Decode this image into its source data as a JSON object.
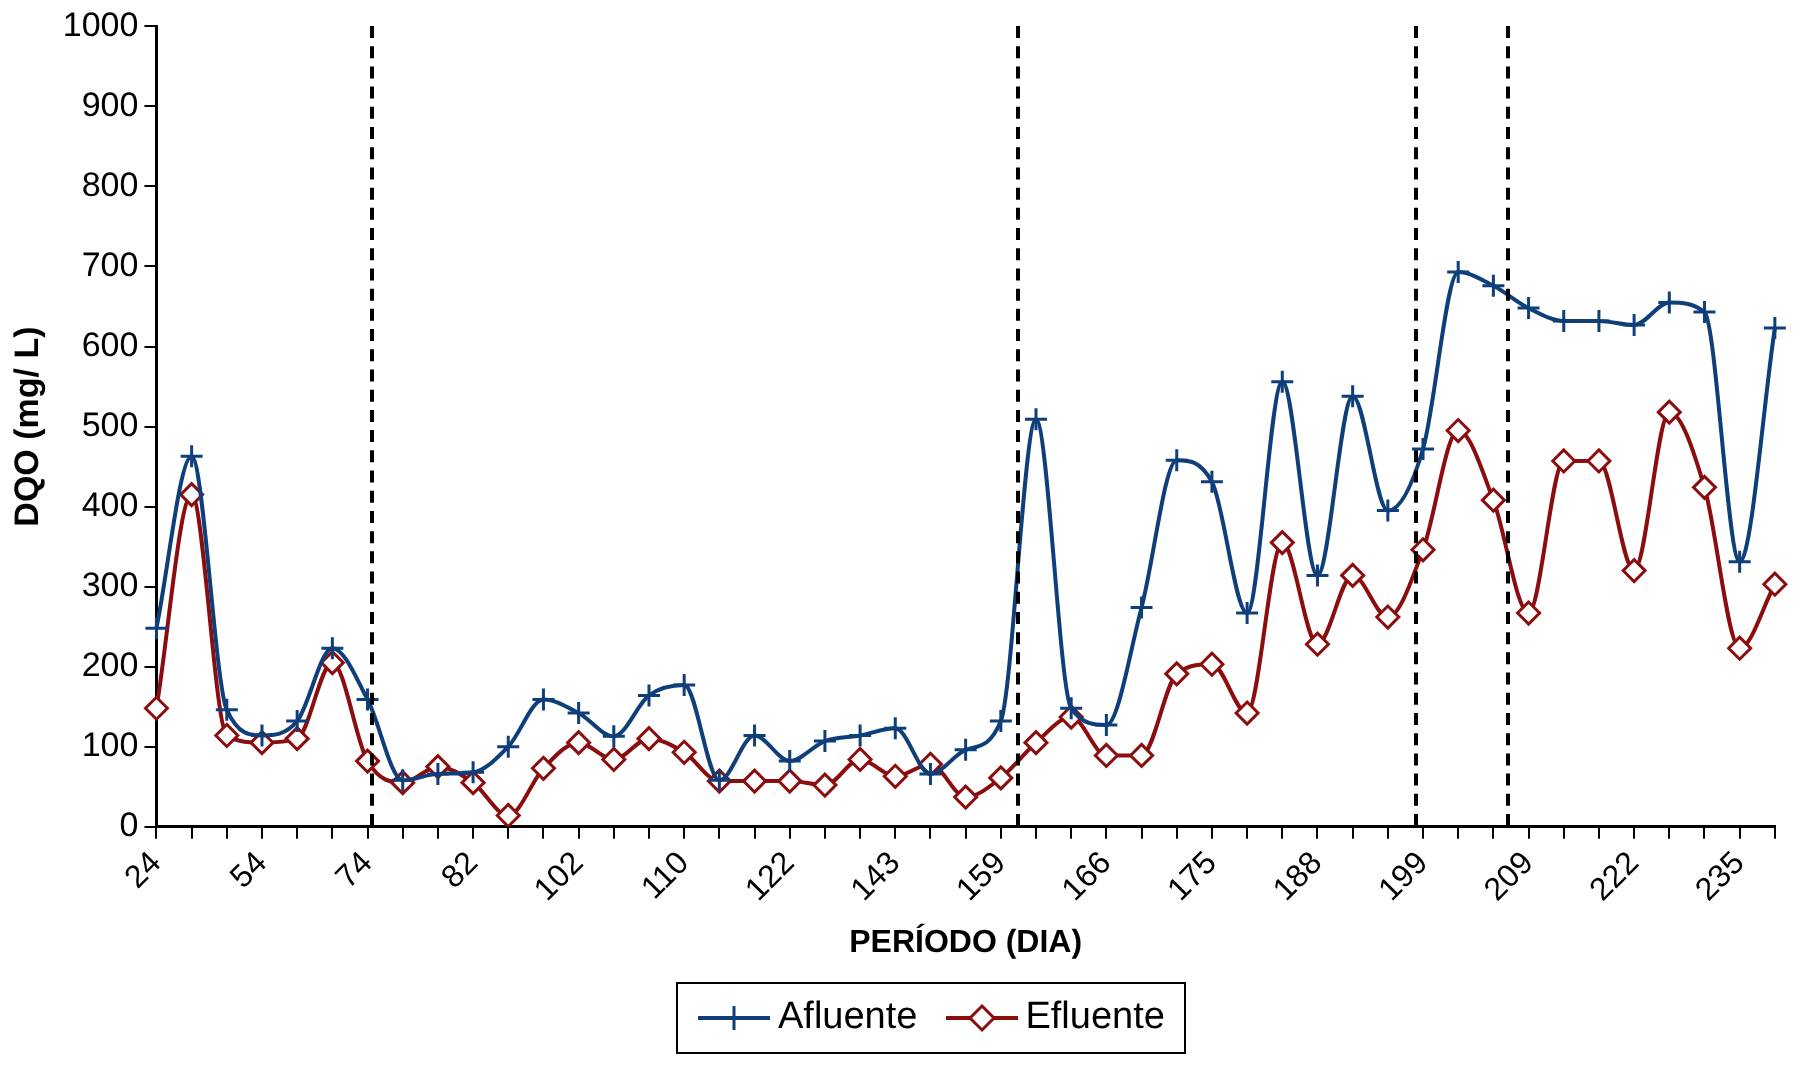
{
  "chart_data": {
    "type": "line",
    "xlabel": "PERÍODO (DIA)",
    "ylabel": "DQO (mg/ L)",
    "categories": [
      "24",
      null,
      null,
      "54",
      null,
      null,
      "74",
      null,
      null,
      "82",
      null,
      null,
      "102",
      null,
      null,
      "110",
      null,
      null,
      "122",
      null,
      null,
      "143",
      null,
      null,
      "159",
      null,
      null,
      "166",
      null,
      null,
      "175",
      null,
      null,
      "188",
      null,
      null,
      "199",
      null,
      null,
      "209",
      null,
      null,
      "222",
      null,
      null,
      "235",
      null
    ],
    "series": [
      {
        "name": "Afluente",
        "color": "#0f3f7a",
        "marker": "cross",
        "values": [
          248,
          463,
          146,
          114,
          132,
          223,
          159,
          58,
          66,
          68,
          100,
          159,
          142,
          113,
          164,
          177,
          58,
          114,
          82,
          107,
          114,
          123,
          66,
          96,
          132,
          509,
          148,
          127,
          274,
          458,
          431,
          267,
          556,
          314,
          538,
          395,
          472,
          693,
          676,
          648,
          632,
          632,
          627,
          655,
          643,
          331,
          623
        ]
      },
      {
        "name": "Efluente",
        "color": "#8b0d0d",
        "marker": "diamond",
        "values": [
          148,
          415,
          114,
          105,
          110,
          205,
          82,
          55,
          75,
          55,
          14,
          73,
          105,
          84,
          110,
          93,
          57,
          57,
          57,
          52,
          84,
          63,
          78,
          37,
          61,
          105,
          137,
          89,
          89,
          191,
          203,
          142,
          355,
          228,
          314,
          262,
          346,
          495,
          408,
          267,
          457,
          457,
          320,
          518,
          424,
          223,
          303
        ]
      }
    ],
    "ylim": [
      0,
      1000
    ],
    "yticks": [
      0,
      100,
      200,
      300,
      400,
      500,
      600,
      700,
      800,
      900,
      1000
    ],
    "legend": "bottom",
    "line_style": "solid"
  }
}
